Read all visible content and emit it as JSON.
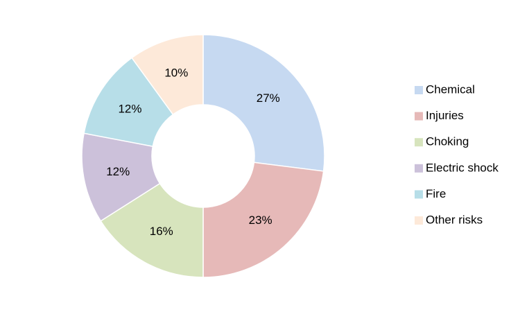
{
  "chart_data": {
    "type": "donut",
    "categories": [
      "Chemical",
      "Injuries",
      "Choking",
      "Electric shock",
      "Fire",
      "Other risks"
    ],
    "values": [
      27,
      23,
      16,
      12,
      12,
      10
    ],
    "value_labels": [
      "27%",
      "23%",
      "16%",
      "12%",
      "12%",
      "10%"
    ],
    "colors": [
      "#c6d9f1",
      "#e6b9b8",
      "#d7e4bd",
      "#ccc1da",
      "#b7dee8",
      "#fde9d9"
    ],
    "legend": "right"
  }
}
